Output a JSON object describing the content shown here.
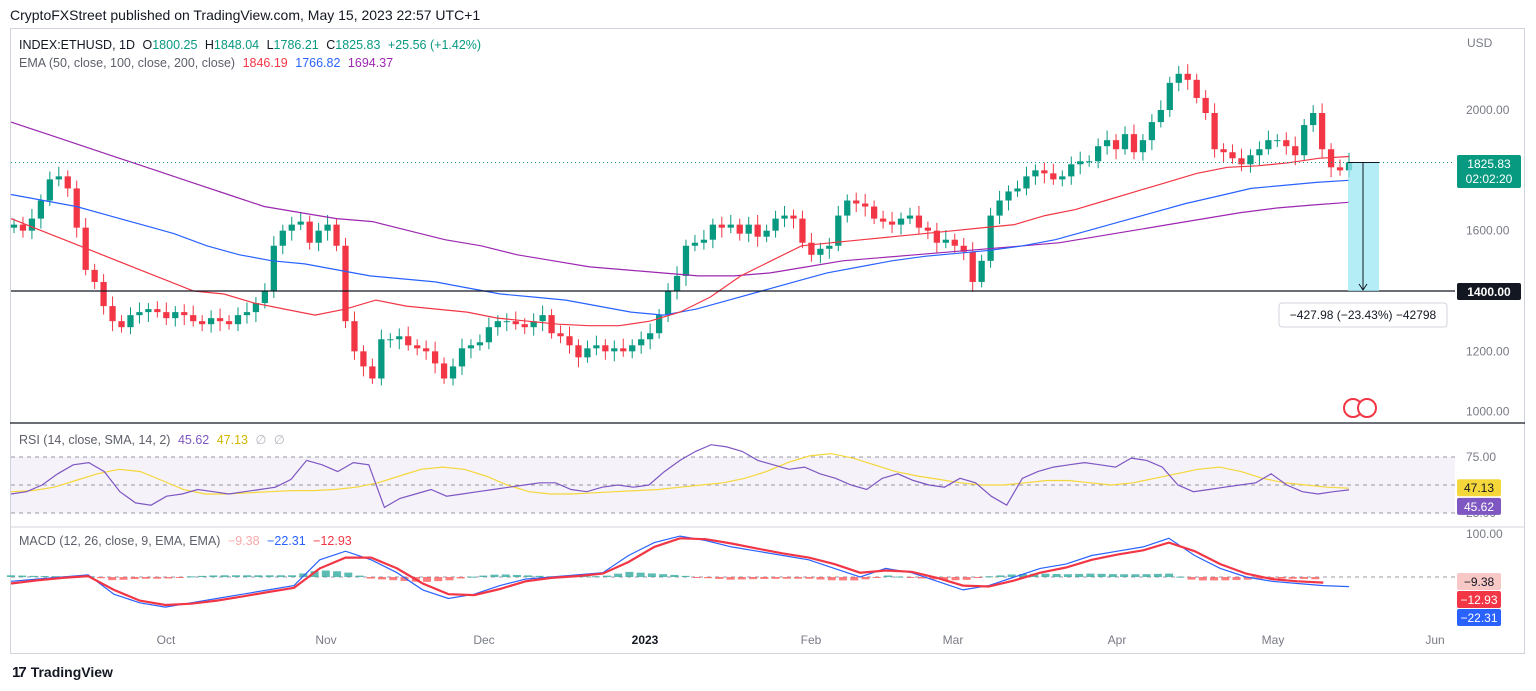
{
  "header": {
    "publisher": "CryptoFXStreet published on TradingView.com, May 15, 2023 22:57 UTC+1"
  },
  "footer": {
    "brand": "TradingView"
  },
  "legend_main": {
    "symbol": "INDEX:ETHUSD, 1D",
    "o_label": "O",
    "o": "1800.25",
    "h_label": "H",
    "h": "1848.04",
    "l_label": "L",
    "l": "1786.21",
    "c_label": "C",
    "c": "1825.83",
    "change": "+25.56 (+1.42%)"
  },
  "legend_ema": {
    "label": "EMA (50, close, 100, close, 200, close)",
    "ema50": "1846.19",
    "ema100": "1766.82",
    "ema200": "1694.37"
  },
  "legend_rsi": {
    "label": "RSI (14, close, SMA, 14, 2)",
    "rsi": "45.62",
    "sma": "47.13",
    "extra1": "∅",
    "extra2": "∅"
  },
  "legend_macd": {
    "label": "MACD (12, 26, close, 9, EMA, EMA)",
    "hist": "−9.38",
    "macd": "−22.31",
    "signal": "−12.93"
  },
  "colors": {
    "up": "#089981",
    "down": "#f23645",
    "ema50": "#f23645",
    "ema100": "#2962ff",
    "ema200": "#9c27b0",
    "rsi": "#7e57c2",
    "rsi_sma": "#f5d73b",
    "macd": "#2962ff",
    "signal": "#f23645",
    "measure_fill": "#9be7f2"
  },
  "price_badge": {
    "price": "1825.83",
    "countdown": "02:02:20"
  },
  "level_badge": {
    "price": "1400.00"
  },
  "measure": {
    "text": "−427.98 (−23.43%) −42798"
  },
  "rsi_badges": {
    "sma": "47.13",
    "rsi": "45.62"
  },
  "macd_badges": {
    "hist": "−9.38",
    "signal": "−12.93",
    "macd": "−22.31"
  },
  "chart_data": {
    "type": "candlestick",
    "currency": "USD",
    "x_ticks": [
      "Oct",
      "Nov",
      "Dec",
      "2023",
      "Feb",
      "Mar",
      "Apr",
      "May",
      "Jun"
    ],
    "price_ticks": [
      "2000.00",
      "1800.00",
      "1600.00",
      "1400.00",
      "1200.00",
      "1000.00"
    ],
    "rsi_ticks": [
      "75.00",
      "25.00"
    ],
    "macd_ticks": [
      "100.00"
    ],
    "price_range": [
      1000,
      2100
    ],
    "horizontal_level": 1400,
    "close_last": 1825.83,
    "ema50_last": 1846.19,
    "ema100_last": 1766.82,
    "ema200_last": 1694.37,
    "price_path_closes": [
      1620,
      1600,
      1640,
      1700,
      1770,
      1780,
      1740,
      1610,
      1470,
      1430,
      1350,
      1300,
      1280,
      1320,
      1330,
      1340,
      1330,
      1310,
      1330,
      1320,
      1300,
      1290,
      1310,
      1300,
      1290,
      1320,
      1330,
      1360,
      1400,
      1550,
      1600,
      1620,
      1630,
      1560,
      1600,
      1620,
      1550,
      1300,
      1200,
      1150,
      1110,
      1240,
      1240,
      1250,
      1220,
      1210,
      1200,
      1160,
      1110,
      1150,
      1210,
      1220,
      1230,
      1280,
      1300,
      1300,
      1290,
      1280,
      1300,
      1320,
      1260,
      1250,
      1220,
      1180,
      1210,
      1220,
      1200,
      1210,
      1200,
      1220,
      1240,
      1260,
      1320,
      1400,
      1450,
      1550,
      1560,
      1570,
      1620,
      1610,
      1620,
      1590,
      1620,
      1580,
      1600,
      1640,
      1650,
      1640,
      1560,
      1520,
      1540,
      1550,
      1650,
      1700,
      1690,
      1680,
      1640,
      1630,
      1620,
      1640,
      1650,
      1610,
      1600,
      1560,
      1570,
      1550,
      1530,
      1430,
      1500,
      1650,
      1700,
      1730,
      1740,
      1780,
      1800,
      1790,
      1770,
      1780,
      1820,
      1830,
      1830,
      1880,
      1900,
      1870,
      1920,
      1860,
      1900,
      1960,
      2000,
      2090,
      2120,
      2100,
      2040,
      1990,
      1870,
      1860,
      1840,
      1820,
      1850,
      1870,
      1900,
      1900,
      1880,
      1850,
      1950,
      1990,
      1870,
      1810,
      1800,
      1826
    ],
    "ema50_series": [
      1640,
      1600,
      1560,
      1520,
      1480,
      1440,
      1400,
      1390,
      1360,
      1340,
      1320,
      1340,
      1370,
      1350,
      1340,
      1330,
      1310,
      1300,
      1290,
      1285,
      1285,
      1300,
      1330,
      1380,
      1450,
      1500,
      1550,
      1560,
      1570,
      1580,
      1590,
      1600,
      1610,
      1620,
      1650,
      1670,
      1700,
      1730,
      1760,
      1790,
      1810,
      1815,
      1825,
      1840,
      1846
    ],
    "ema100_series": [
      1720,
      1700,
      1680,
      1650,
      1620,
      1590,
      1550,
      1520,
      1500,
      1490,
      1470,
      1450,
      1440,
      1430,
      1410,
      1390,
      1380,
      1370,
      1350,
      1330,
      1320,
      1340,
      1370,
      1400,
      1430,
      1460,
      1480,
      1500,
      1515,
      1525,
      1535,
      1550,
      1570,
      1600,
      1630,
      1660,
      1690,
      1715,
      1740,
      1750,
      1760,
      1767
    ],
    "ema200_series": [
      1960,
      1920,
      1880,
      1840,
      1800,
      1760,
      1720,
      1680,
      1660,
      1640,
      1630,
      1600,
      1570,
      1550,
      1520,
      1500,
      1480,
      1470,
      1460,
      1450,
      1450,
      1460,
      1480,
      1500,
      1510,
      1520,
      1530,
      1540,
      1550,
      1560,
      1580,
      1600,
      1620,
      1640,
      1660,
      1675,
      1685,
      1694
    ],
    "rsi_path": [
      42,
      44,
      50,
      60,
      68,
      70,
      62,
      44,
      34,
      32,
      40,
      42,
      46,
      44,
      42,
      44,
      46,
      48,
      55,
      72,
      68,
      62,
      70,
      68,
      30,
      38,
      42,
      46,
      40,
      42,
      44,
      46,
      48,
      50,
      52,
      52,
      46,
      44,
      48,
      50,
      48,
      50,
      62,
      72,
      80,
      86,
      84,
      80,
      72,
      68,
      64,
      66,
      60,
      56,
      50,
      46,
      56,
      60,
      54,
      50,
      48,
      56,
      52,
      40,
      32,
      56,
      62,
      66,
      68,
      70,
      68,
      66,
      74,
      72,
      66,
      50,
      44,
      46,
      48,
      50,
      52,
      60,
      50,
      44,
      42,
      44,
      45.62
    ],
    "rsi_sma_path": [
      44,
      45,
      48,
      54,
      60,
      64,
      62,
      54,
      46,
      42,
      42,
      43,
      44,
      45,
      45,
      46,
      48,
      52,
      58,
      64,
      66,
      64,
      58,
      50,
      44,
      42,
      42,
      43,
      44,
      45,
      46,
      48,
      50,
      52,
      56,
      62,
      70,
      76,
      78,
      74,
      68,
      62,
      58,
      55,
      52,
      50,
      50,
      52,
      54,
      54,
      52,
      50,
      52,
      56,
      60,
      64,
      66,
      62,
      56,
      52,
      50,
      48,
      47.13
    ],
    "macd_hist_sign_pattern": "mixed",
    "macd_path": [
      -10,
      -5,
      0,
      5,
      -40,
      -60,
      -70,
      -60,
      -50,
      -40,
      -30,
      -20,
      40,
      60,
      40,
      10,
      -30,
      -50,
      -40,
      -20,
      -5,
      0,
      5,
      10,
      50,
      80,
      95,
      85,
      70,
      60,
      50,
      40,
      20,
      0,
      20,
      10,
      -10,
      -30,
      -20,
      0,
      20,
      30,
      50,
      60,
      70,
      90,
      50,
      20,
      0,
      -10,
      -15,
      -20,
      -22.31
    ],
    "signal_path": [
      -15,
      -8,
      -2,
      2,
      -30,
      -55,
      -65,
      -62,
      -55,
      -45,
      -35,
      -25,
      20,
      45,
      45,
      20,
      -15,
      -40,
      -42,
      -28,
      -10,
      -2,
      2,
      8,
      35,
      70,
      90,
      88,
      78,
      66,
      55,
      45,
      30,
      10,
      15,
      12,
      -2,
      -20,
      -22,
      -8,
      10,
      22,
      40,
      52,
      62,
      80,
      60,
      30,
      8,
      -5,
      -10,
      -12.93
    ]
  }
}
